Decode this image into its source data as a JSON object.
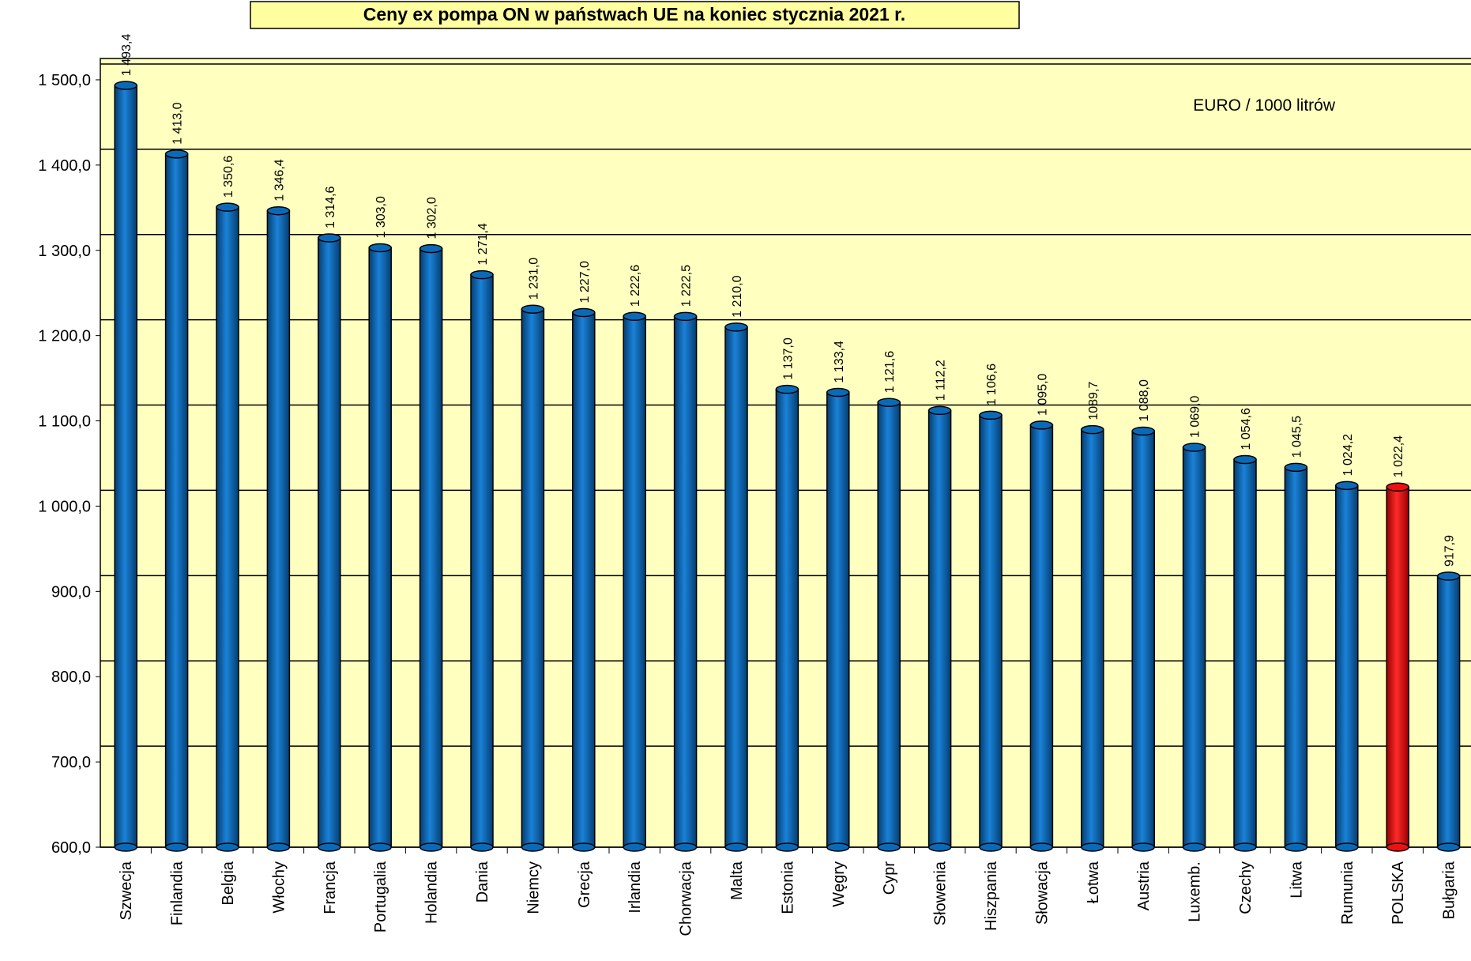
{
  "chart_data": {
    "type": "bar",
    "title": "Ceny ex pompa ON w państwach UE na koniec stycznia 2021 r.",
    "annotation": "EURO / 1000 litrów",
    "categories": [
      "Szwecja",
      "Finlandia",
      "Belgia",
      "Włochy",
      "Francja",
      "Portugalia",
      "Holandia",
      "Dania",
      "Niemcy",
      "Grecja",
      "Irlandia",
      "Chorwacja",
      "Malta",
      "Estonia",
      "Węgry",
      "Cypr",
      "Słowenia",
      "Hiszpania",
      "Słowacja",
      "Łotwa",
      "Austria",
      "Luxemb.",
      "Czechy",
      "Litwa",
      "Rumunia",
      "POLSKA",
      "Bułgaria"
    ],
    "values": [
      1493.4,
      1413.0,
      1350.6,
      1346.4,
      1314.6,
      1303.0,
      1302.0,
      1271.4,
      1231.0,
      1227.0,
      1222.6,
      1222.5,
      1210.0,
      1137.0,
      1133.4,
      1121.6,
      1112.2,
      1106.6,
      1095.0,
      1089.7,
      1088.0,
      1069.0,
      1054.6,
      1045.5,
      1024.2,
      1022.4,
      917.9
    ],
    "value_labels": [
      "1 493,4",
      "1 413,0",
      "1 350,6",
      "1 346,4",
      "1 314,6",
      "1 303,0",
      "1 302,0",
      "1 271,4",
      "1 231,0",
      "1 227,0",
      "1 222,6",
      "1 222,5",
      "1 210,0",
      "1 137,0",
      "1 133,4",
      "1 121,6",
      "1 112,2",
      "1 106,6",
      "1 095,0",
      "1089,7",
      "1 088,0",
      "1 069,0",
      "1 054,6",
      "1 045,5",
      "1 024,2",
      "1 022,4",
      "917,9"
    ],
    "colors": [
      "#0a6ab8",
      "#0a6ab8",
      "#0a6ab8",
      "#0a6ab8",
      "#0a6ab8",
      "#0a6ab8",
      "#0a6ab8",
      "#0a6ab8",
      "#0a6ab8",
      "#0a6ab8",
      "#0a6ab8",
      "#0a6ab8",
      "#0a6ab8",
      "#0a6ab8",
      "#0a6ab8",
      "#0a6ab8",
      "#0a6ab8",
      "#0a6ab8",
      "#0a6ab8",
      "#0a6ab8",
      "#0a6ab8",
      "#0a6ab8",
      "#0a6ab8",
      "#0a6ab8",
      "#0a6ab8",
      "#ee1111",
      "#0a6ab8"
    ],
    "ylim": [
      600,
      1525
    ],
    "yticks": [
      {
        "value": 600,
        "label": "600,0"
      },
      {
        "value": 700,
        "label": "700,0"
      },
      {
        "value": 800,
        "label": "800,0"
      },
      {
        "value": 900,
        "label": "900,0"
      },
      {
        "value": 1000,
        "label": "1 000,0"
      },
      {
        "value": 1100,
        "label": "1 100,0"
      },
      {
        "value": 1200,
        "label": "1 200,0"
      },
      {
        "value": 1300,
        "label": "1 300,0"
      },
      {
        "value": 1400,
        "label": "1 400,0"
      },
      {
        "value": 1500,
        "label": "1 500,0"
      }
    ],
    "grid": true
  }
}
